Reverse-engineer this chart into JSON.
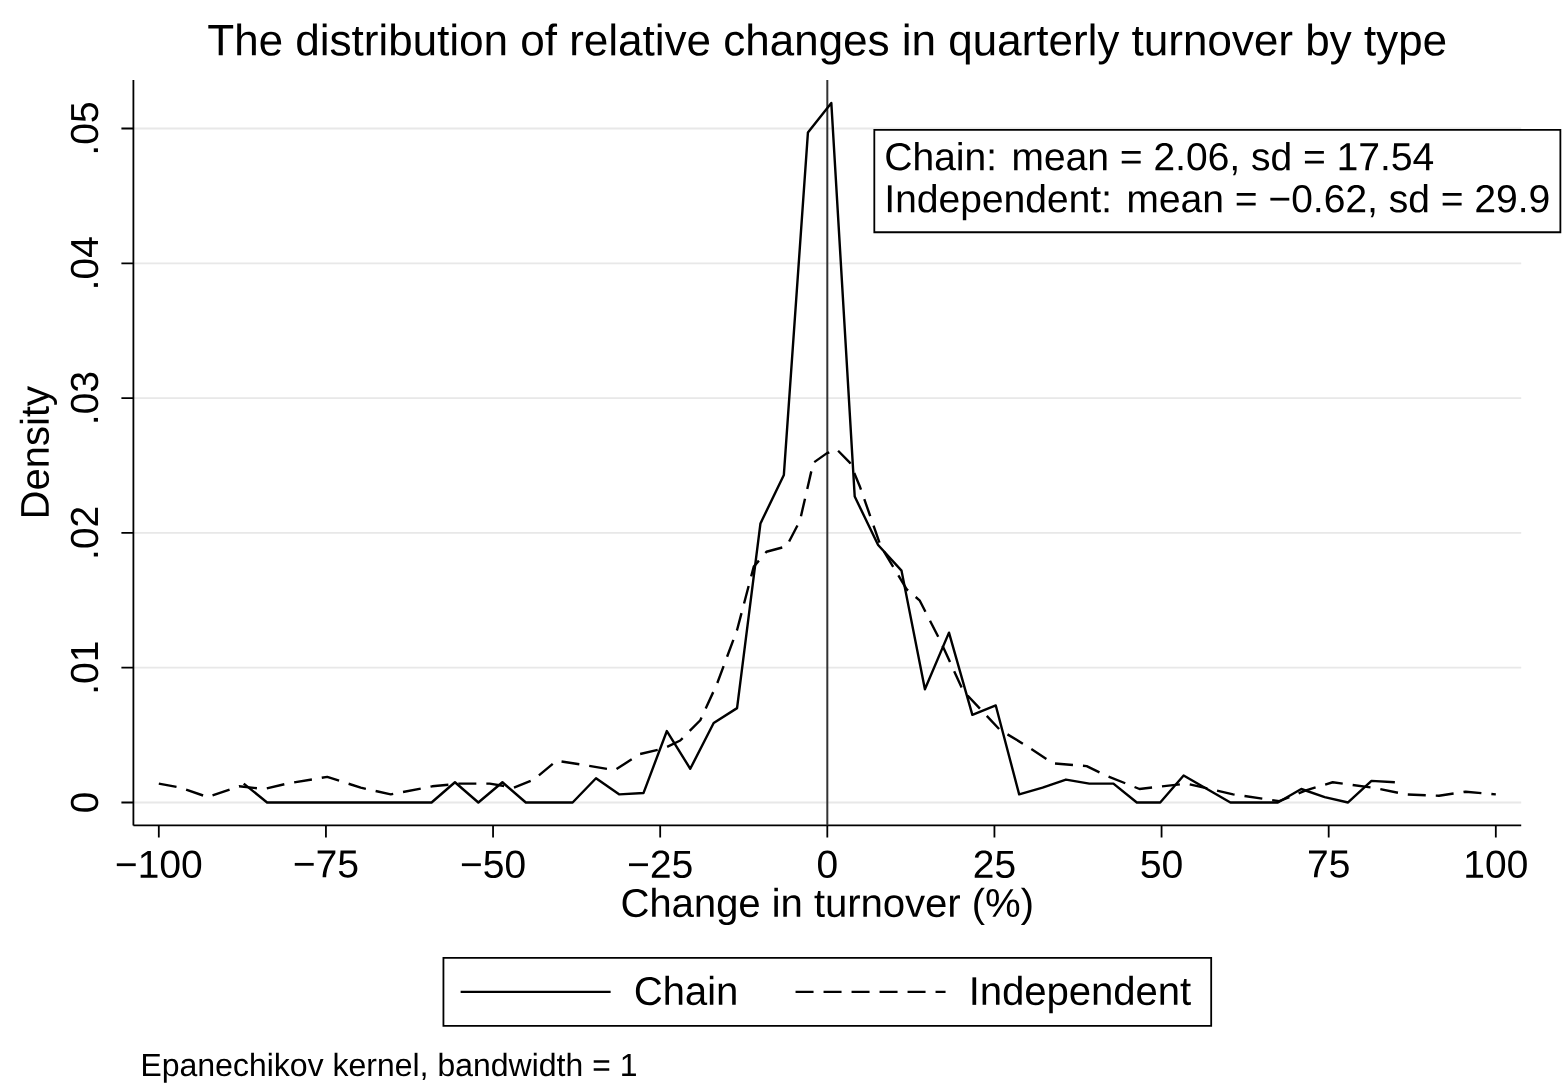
{
  "chart_data": {
    "type": "line",
    "title": "The distribution of relative changes in quarterly turnover by type",
    "xlabel": "Change in turnover (%)",
    "ylabel": "Density",
    "series": [
      {
        "name": "Chain",
        "color": "#000000",
        "line_style": "solid",
        "x": [
          -87.3,
          -83.8,
          -80.3,
          -76.8,
          -73.2,
          -69.7,
          -66.2,
          -62.7,
          -59.2,
          -55.7,
          -52.2,
          -48.6,
          -45.1,
          -41.6,
          -38.1,
          -34.6,
          -31.1,
          -27.5,
          -24.0,
          -20.5,
          -17.0,
          -13.5,
          -10.0,
          -6.5,
          -2.9,
          0.6,
          4.1,
          7.6,
          11.1,
          14.6,
          18.2,
          21.7,
          25.2,
          28.7,
          32.2,
          35.7,
          39.2,
          42.8,
          46.3,
          49.8,
          53.3,
          56.8,
          60.3,
          63.8,
          67.4,
          70.9,
          74.4,
          77.9,
          81.4,
          84.9
        ],
        "values": [
          0.0014,
          0,
          0,
          0,
          0,
          0,
          0,
          0,
          0,
          0.0015,
          0,
          0.0015,
          0,
          0,
          0,
          0.0018,
          0.0006,
          0.0007,
          0.0053,
          0.0025,
          0.0059,
          0.007,
          0.0207,
          0.0243,
          0.0497,
          0.0519,
          0.0227,
          0.0191,
          0.0172,
          0.0084,
          0.0126,
          0.0065,
          0.0072,
          0.0006,
          0.0011,
          0.0017,
          0.0014,
          0.0014,
          0,
          0,
          0.002,
          0.001,
          0,
          0,
          0,
          0.001,
          0.0004,
          0,
          0.0016,
          0.0015
        ]
      },
      {
        "name": "Independent",
        "color": "#000000",
        "line_style": "dashed",
        "x": [
          -100,
          -96.7,
          -92.7,
          -88.0,
          -84.2,
          -80.8,
          -74.8,
          -69.8,
          -65.3,
          -59.1,
          -55.0,
          -50.5,
          -46.9,
          -43.9,
          -40.5,
          -35.4,
          -31.8,
          -28.0,
          -24.5,
          -22.0,
          -19.0,
          -16.5,
          -13.5,
          -11.0,
          -9.1,
          -6.1,
          -4.1,
          -2.1,
          -0.1,
          1.4,
          3.4,
          4.9,
          8.0,
          11.9,
          13.8,
          16.9,
          20.3,
          25.8,
          29.8,
          33.8,
          38.8,
          41.7,
          46.7,
          53.7,
          60.7,
          67.6,
          71.6,
          75.6,
          81.6,
          86.6,
          91.5,
          95.5,
          100
        ],
        "values": [
          0.0014,
          0.0011,
          0.0004,
          0.0012,
          0.001,
          0.0014,
          0.0019,
          0.0011,
          0.0006,
          0.0012,
          0.0014,
          0.0014,
          0.0011,
          0.0017,
          0.0031,
          0.0027,
          0.0024,
          0.0036,
          0.004,
          0.0046,
          0.0061,
          0.0088,
          0.0128,
          0.0175,
          0.0186,
          0.019,
          0.0209,
          0.0252,
          0.0259,
          0.0262,
          0.0252,
          0.0234,
          0.019,
          0.0158,
          0.015,
          0.012,
          0.0083,
          0.0054,
          0.0042,
          0.0029,
          0.0027,
          0.002,
          0.001,
          0.0014,
          0.0006,
          0.0001,
          0.0009,
          0.0015,
          0.0011,
          0.0006,
          0.0005,
          0.0008,
          0.0006
        ]
      }
    ],
    "xlim": [
      -103.8,
      103.8
    ],
    "ylim": [
      -0.0017,
      0.0536
    ],
    "xticks": [
      {
        "value": -100,
        "label": "−100"
      },
      {
        "value": -75,
        "label": "−75"
      },
      {
        "value": -50,
        "label": "−50"
      },
      {
        "value": -25,
        "label": "−25"
      },
      0,
      25,
      50,
      75,
      100
    ],
    "yticks": [
      0,
      {
        "value": 0.01,
        "label": ".01"
      },
      {
        "value": 0.02,
        "label": ".02"
      },
      {
        "value": 0.03,
        "label": ".03"
      },
      {
        "value": 0.04,
        "label": ".04"
      },
      {
        "value": 0.05,
        "label": ".05"
      }
    ],
    "grid": "y",
    "legend": "bottom",
    "ref_lines": [
      {
        "axis": "x",
        "value": 0,
        "color": "#333333"
      }
    ],
    "annotations": [
      "Chain: mean = 2.06, sd = 17.54",
      "Independent: mean = −0.62, sd = 29.9",
      "Epanechikov kernel, bandwidth = 1"
    ]
  }
}
